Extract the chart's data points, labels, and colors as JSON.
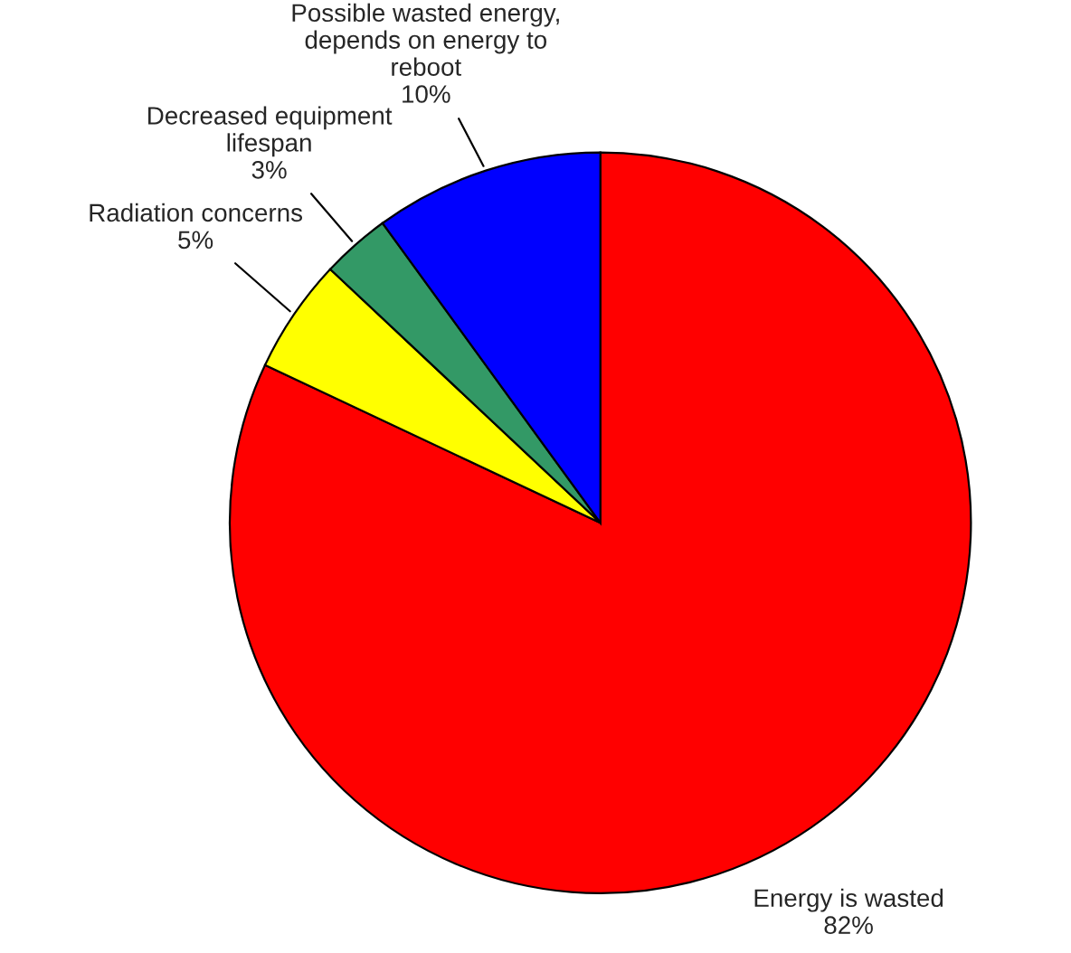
{
  "chart_data": {
    "type": "pie",
    "categories": [
      "Energy is wasted",
      "Radiation concerns",
      "Decreased equipment\nlifespan",
      "Possible wasted energy,\ndepends on energy to\nreboot"
    ],
    "values": [
      82,
      5,
      3,
      10
    ],
    "colors": [
      "#ff0000",
      "#ffff00",
      "#339966",
      "#0000ff"
    ],
    "value_labels": [
      "82%",
      "5%",
      "3%",
      "10%"
    ],
    "legend": false
  }
}
